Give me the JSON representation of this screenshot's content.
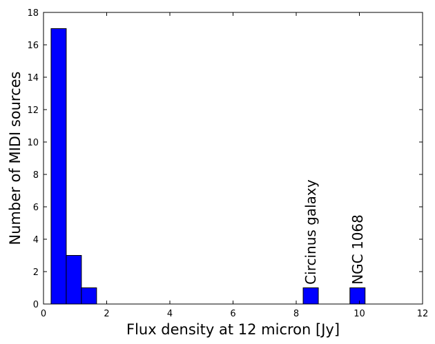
{
  "chart_data": {
    "type": "bar",
    "subtype": "histogram",
    "xlabel": "Flux density at 12 micron [Jy]",
    "ylabel": "Number of MIDI sources",
    "xlim": [
      0,
      12
    ],
    "ylim": [
      0,
      18
    ],
    "xticks": [
      0,
      2,
      4,
      6,
      8,
      10,
      12
    ],
    "yticks": [
      0,
      2,
      4,
      6,
      8,
      10,
      12,
      14,
      16,
      18
    ],
    "grid": false,
    "bar_color": "#0000ff",
    "bins": [
      {
        "x0": 0.24,
        "x1": 0.72,
        "count": 17
      },
      {
        "x0": 0.72,
        "x1": 1.2,
        "count": 3
      },
      {
        "x0": 1.2,
        "x1": 1.68,
        "count": 1
      },
      {
        "x0": 8.22,
        "x1": 8.7,
        "count": 1
      },
      {
        "x0": 9.7,
        "x1": 10.18,
        "count": 1
      }
    ],
    "annotations": [
      {
        "text": "Circinus galaxy",
        "x": 8.46,
        "y": 1.2
      },
      {
        "text": "NGC 1068",
        "x": 9.94,
        "y": 1.2
      }
    ]
  }
}
